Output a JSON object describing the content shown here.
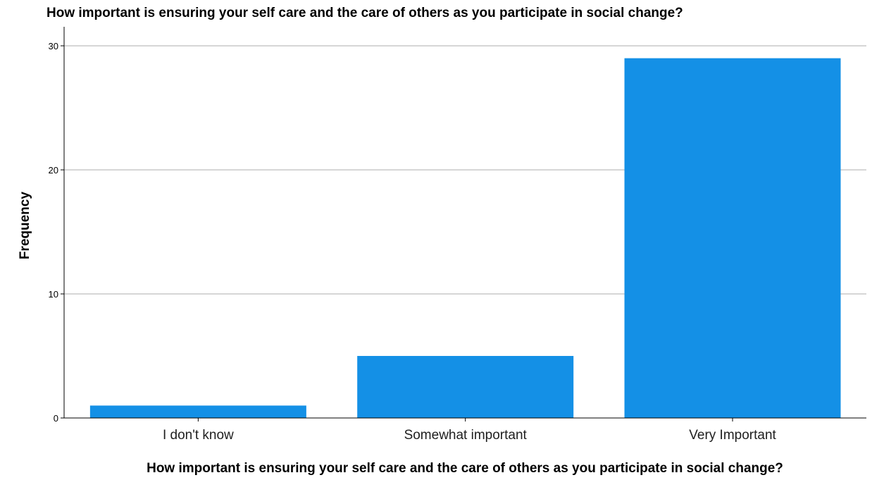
{
  "chart_data": {
    "type": "bar",
    "title": "How important is ensuring your self care and the care of others as you participate in social change?",
    "xlabel": "How important is ensuring your self care and the care of others as you participate in social change?",
    "ylabel": "Frequency",
    "categories": [
      "I don't know",
      "Somewhat important",
      "Very Important"
    ],
    "values": [
      1,
      5,
      29
    ],
    "ylim": [
      0,
      30
    ],
    "y_ticks": [
      0,
      10,
      20,
      30
    ],
    "y_tick_labels": [
      "0",
      "10",
      "20",
      "30"
    ],
    "grid": true,
    "legend": "none",
    "bar_color": "#1490e6",
    "grid_color": "#c8c8c8",
    "axis_color": "#000000"
  }
}
